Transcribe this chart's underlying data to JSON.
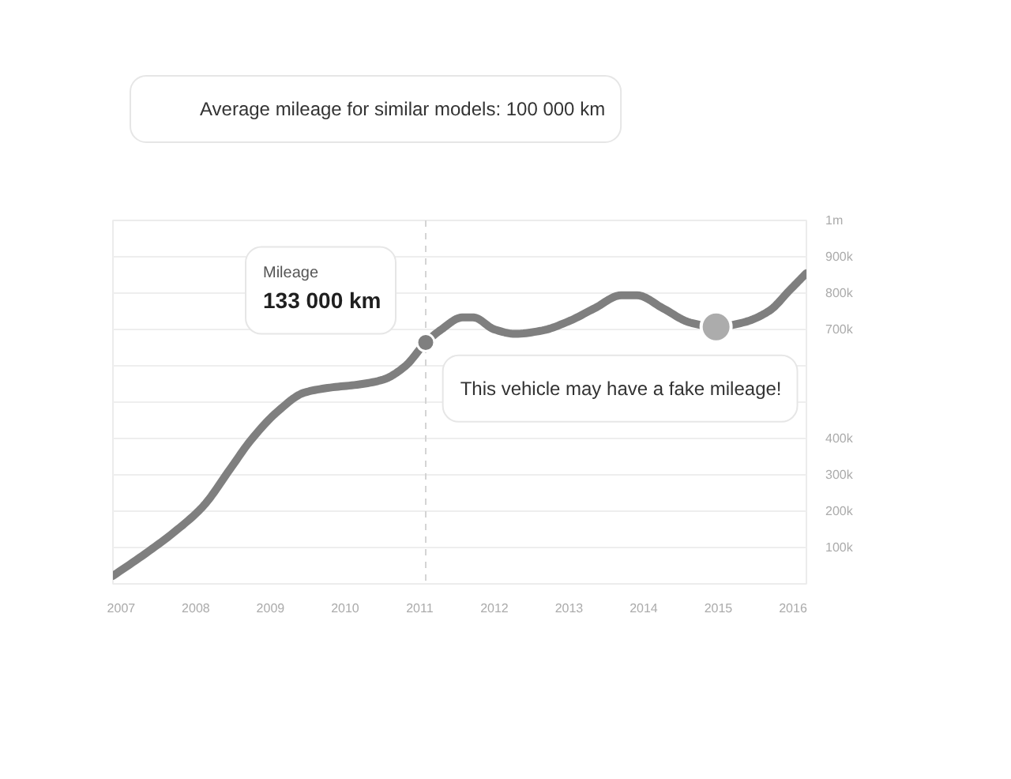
{
  "chart_data": {
    "type": "line",
    "color": "#7f7f7f",
    "line_style": "solid",
    "x": [
      2006.89,
      2007.33,
      2007.75,
      2008.1,
      2008.46,
      2008.74,
      2009.1,
      2009.45,
      2009.8,
      2010.16,
      2010.51,
      2010.8,
      2011.08,
      2011.29,
      2011.57,
      2011.72,
      2012.0,
      2012.28,
      2012.64,
      2012.99,
      2013.34,
      2013.7,
      2013.91,
      2014.26,
      2014.62,
      2014.97,
      2015.33,
      2015.68,
      2015.96,
      2016.18
    ],
    "values": [
      22000,
      84000,
      149000,
      214000,
      316000,
      396000,
      475000,
      526000,
      540000,
      548000,
      562000,
      598000,
      664000,
      700000,
      733000,
      733000,
      700000,
      688000,
      697000,
      722000,
      758000,
      794000,
      794000,
      758000,
      719000,
      707000,
      719000,
      751000,
      809000,
      855000
    ],
    "xlim": [
      2006.89,
      2016.18
    ],
    "xticks": [
      2007,
      2008,
      2009,
      2010,
      2011,
      2012,
      2013,
      2014,
      2015,
      2016
    ],
    "ylim": [
      0,
      1000000
    ],
    "yticks": [
      {
        "value": 0,
        "label": null
      },
      {
        "value": 100000,
        "label": "100k"
      },
      {
        "value": 200000,
        "label": "200k"
      },
      {
        "value": 300000,
        "label": "300k"
      },
      {
        "value": 400000,
        "label": "400k"
      },
      {
        "value": 500000,
        "label": null
      },
      {
        "value": 600000,
        "label": null
      },
      {
        "value": 700000,
        "label": "700k"
      },
      {
        "value": 800000,
        "label": "800k"
      },
      {
        "value": 900000,
        "label": "900k"
      },
      {
        "value": 1000000,
        "label": "1m"
      }
    ],
    "grid": "y",
    "ref_lines": [
      {
        "axis": "x",
        "value": 2011.08,
        "color": "#d4d4d4",
        "line_style": "dashed"
      }
    ],
    "annotations": [
      "Average mileage for similar models: 100 000 km",
      "Mileage",
      {
        "text": "133 000 km",
        "x": 2011.08,
        "y": 664000
      },
      {
        "text": "This vehicle may have a fake mileage!",
        "x": 2014.97,
        "y": 707000
      }
    ]
  }
}
